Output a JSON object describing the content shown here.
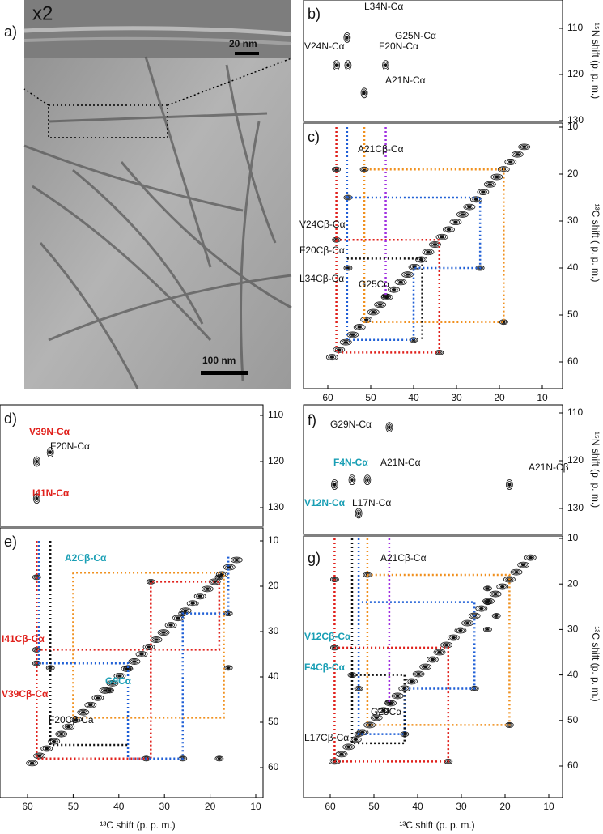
{
  "panel_a": {
    "label": "a)",
    "zoom": "x2",
    "scale_small": "20 nm",
    "scale_large": "100 nm"
  },
  "panel_b": {
    "label": "b)",
    "y_axis_title": "¹⁵N shift (p. p. m.)",
    "yticks": [
      110,
      120,
      130
    ],
    "peaks": [
      "L34N-Cα",
      "V24N-Cα",
      "F20N-Cα",
      "G25N-Cα",
      "A21N-Cα"
    ]
  },
  "panel_c": {
    "label": "c)",
    "y_axis_title": "¹³C shift ( p. p. m.)",
    "yticks": [
      10,
      20,
      30,
      40,
      50,
      60
    ],
    "xticks": [
      60,
      50,
      40,
      30,
      20,
      10
    ],
    "peaks": [
      "A21Cβ-Cα",
      "V24Cβ-Cα",
      "F20Cβ-Cα",
      "L34Cβ-Cα",
      "G25Cα"
    ]
  },
  "panel_d": {
    "label": "d)",
    "yticks": [
      110,
      120,
      130
    ],
    "peaks": [
      "V39N-Cα",
      "F20N-Cα",
      "I41N-Cα"
    ]
  },
  "panel_e": {
    "label": "e)",
    "yticks": [
      10,
      20,
      30,
      40,
      50,
      60
    ],
    "xticks": [
      60,
      50,
      40,
      30,
      20,
      10
    ],
    "x_axis_title": "¹³C shift (p. p. m.)",
    "peaks": [
      "A2Cβ-Cα",
      "I41Cβ-Cα",
      "G9Cα",
      "V39Cβ-Cα",
      "F20Cβ-Ca"
    ]
  },
  "panel_f": {
    "label": "f)",
    "y_axis_title": "¹⁵N shift (p. p. m.)",
    "yticks": [
      110,
      120,
      130
    ],
    "peaks": [
      "G29N-Cα",
      "F4N-Cα",
      "A21N-Cα",
      "A21N-Cβ",
      "V12N-Cα",
      "L17N-Cα"
    ]
  },
  "panel_g": {
    "label": "g)",
    "y_axis_title": "¹³C shift (p. p. m.)",
    "yticks": [
      10,
      20,
      30,
      40,
      50,
      60
    ],
    "xticks": [
      60,
      50,
      40,
      30,
      20,
      10
    ],
    "x_axis_title": "¹³C shift (p. p. m.)",
    "peaks": [
      "A21Cβ-Cα",
      "V12Cβ-Cα",
      "F4Cβ-Cα",
      "G29Cα",
      "L17Cβ-Cα"
    ]
  }
}
